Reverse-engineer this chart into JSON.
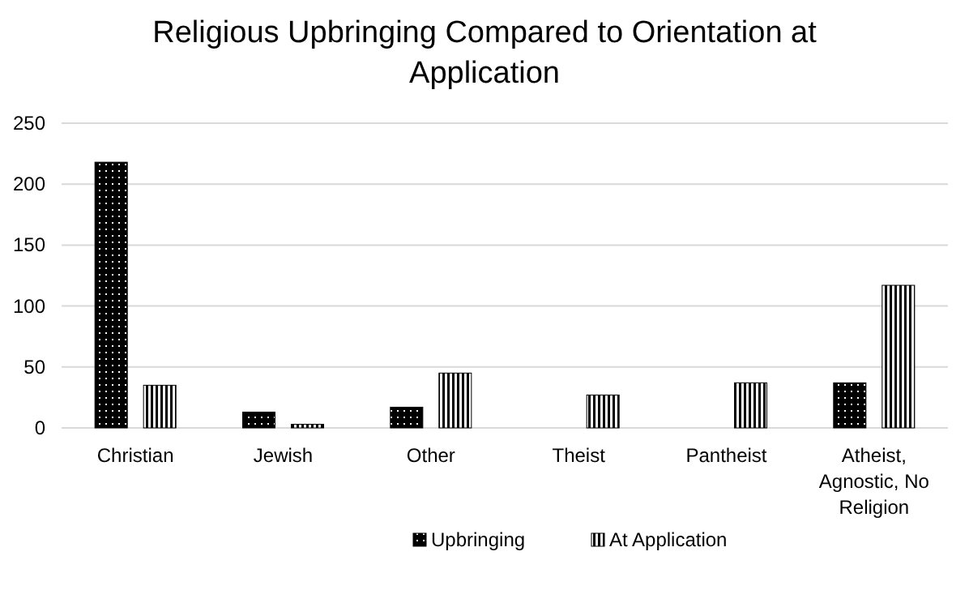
{
  "chart_data": {
    "type": "bar",
    "title": "Religious Upbringing Compared to Orientation at Application",
    "categories": [
      "Christian",
      "Jewish",
      "Other",
      "Theist",
      "Pantheist",
      "Atheist, Agnostic, No Religion"
    ],
    "series": [
      {
        "name": "Upbringing",
        "color": "#000000",
        "values": [
          218,
          13,
          17,
          null,
          null,
          37
        ]
      },
      {
        "name": "At Application",
        "color": "#000000",
        "values": [
          35,
          3,
          45,
          27,
          37,
          117
        ]
      }
    ],
    "ylim": [
      0,
      250
    ],
    "yticks": [
      0,
      50,
      100,
      150,
      200,
      250
    ],
    "grid": "y",
    "legend": "bottom"
  }
}
